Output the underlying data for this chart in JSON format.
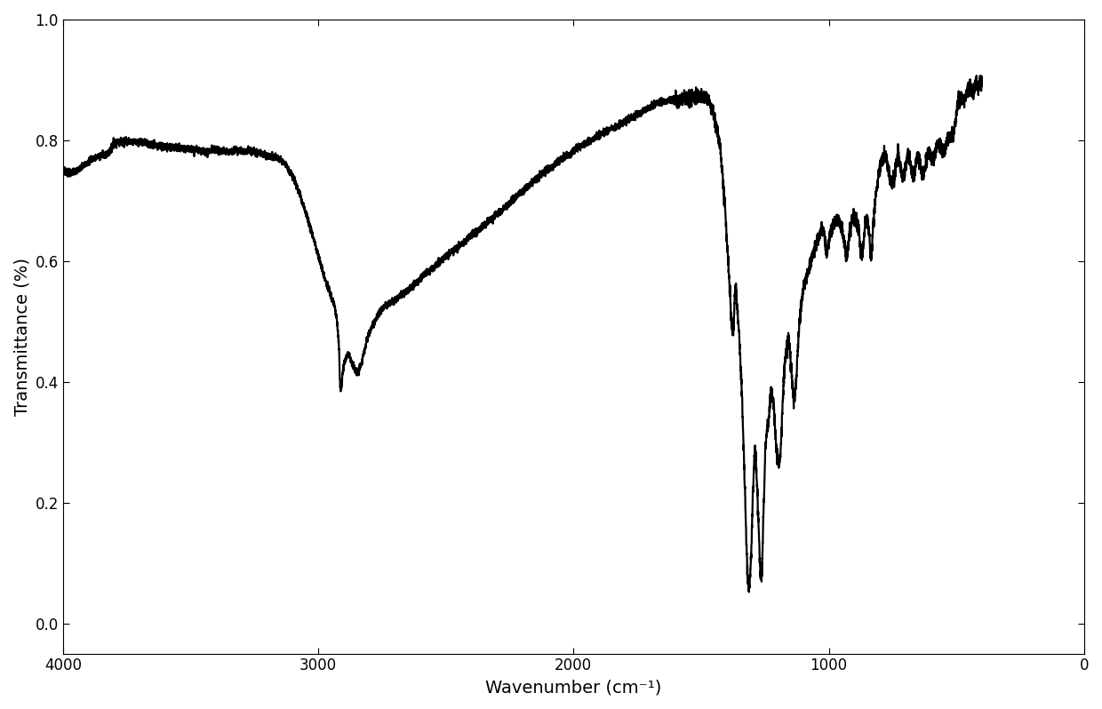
{
  "title": "",
  "xlabel": "Wavenumber (cm⁻¹)",
  "ylabel": "Transmittance (%)",
  "xlim": [
    4000,
    0
  ],
  "ylim": [
    -0.05,
    1.0
  ],
  "yticks": [
    0.0,
    0.2,
    0.4,
    0.6,
    0.8,
    1.0
  ],
  "xticks": [
    4000,
    3000,
    2000,
    1000,
    0
  ],
  "line_color": "#000000",
  "line_width": 1.6,
  "background_color": "#ffffff",
  "key_points": [
    [
      4000,
      0.75
    ],
    [
      3900,
      0.765
    ],
    [
      3850,
      0.775
    ],
    [
      3820,
      0.78
    ],
    [
      3800,
      0.795
    ],
    [
      3780,
      0.798
    ],
    [
      3760,
      0.798
    ],
    [
      3700,
      0.796
    ],
    [
      3650,
      0.793
    ],
    [
      3600,
      0.79
    ],
    [
      3550,
      0.787
    ],
    [
      3500,
      0.785
    ],
    [
      3450,
      0.783
    ],
    [
      3400,
      0.783
    ],
    [
      3350,
      0.782
    ],
    [
      3300,
      0.782
    ],
    [
      3250,
      0.78
    ],
    [
      3200,
      0.775
    ],
    [
      3150,
      0.768
    ],
    [
      3120,
      0.755
    ],
    [
      3100,
      0.74
    ],
    [
      3080,
      0.72
    ],
    [
      3060,
      0.695
    ],
    [
      3040,
      0.668
    ],
    [
      3020,
      0.64
    ],
    [
      3000,
      0.61
    ],
    [
      2980,
      0.58
    ],
    [
      2960,
      0.555
    ],
    [
      2950,
      0.542
    ],
    [
      2940,
      0.53
    ],
    [
      2935,
      0.525
    ],
    [
      2930,
      0.51
    ],
    [
      2925,
      0.495
    ],
    [
      2920,
      0.465
    ],
    [
      2918,
      0.45
    ],
    [
      2916,
      0.42
    ],
    [
      2914,
      0.395
    ],
    [
      2912,
      0.39
    ],
    [
      2910,
      0.392
    ],
    [
      2905,
      0.41
    ],
    [
      2900,
      0.425
    ],
    [
      2895,
      0.435
    ],
    [
      2890,
      0.44
    ],
    [
      2885,
      0.445
    ],
    [
      2880,
      0.445
    ],
    [
      2875,
      0.44
    ],
    [
      2870,
      0.435
    ],
    [
      2865,
      0.428
    ],
    [
      2860,
      0.425
    ],
    [
      2858,
      0.422
    ],
    [
      2856,
      0.42
    ],
    [
      2854,
      0.42
    ],
    [
      2852,
      0.418
    ],
    [
      2850,
      0.416
    ],
    [
      2848,
      0.415
    ],
    [
      2846,
      0.416
    ],
    [
      2844,
      0.418
    ],
    [
      2840,
      0.42
    ],
    [
      2835,
      0.425
    ],
    [
      2830,
      0.432
    ],
    [
      2825,
      0.44
    ],
    [
      2820,
      0.448
    ],
    [
      2815,
      0.458
    ],
    [
      2810,
      0.468
    ],
    [
      2800,
      0.48
    ],
    [
      2790,
      0.49
    ],
    [
      2780,
      0.5
    ],
    [
      2770,
      0.508
    ],
    [
      2760,
      0.515
    ],
    [
      2750,
      0.52
    ],
    [
      2740,
      0.525
    ],
    [
      2720,
      0.53
    ],
    [
      2700,
      0.535
    ],
    [
      2680,
      0.542
    ],
    [
      2660,
      0.548
    ],
    [
      2640,
      0.555
    ],
    [
      2620,
      0.562
    ],
    [
      2600,
      0.57
    ],
    [
      2580,
      0.578
    ],
    [
      2560,
      0.585
    ],
    [
      2540,
      0.592
    ],
    [
      2520,
      0.6
    ],
    [
      2500,
      0.608
    ],
    [
      2480,
      0.615
    ],
    [
      2460,
      0.62
    ],
    [
      2440,
      0.628
    ],
    [
      2420,
      0.635
    ],
    [
      2400,
      0.642
    ],
    [
      2380,
      0.648
    ],
    [
      2360,
      0.655
    ],
    [
      2340,
      0.663
    ],
    [
      2320,
      0.67
    ],
    [
      2300,
      0.678
    ],
    [
      2280,
      0.685
    ],
    [
      2260,
      0.692
    ],
    [
      2240,
      0.7
    ],
    [
      2220,
      0.708
    ],
    [
      2200,
      0.715
    ],
    [
      2180,
      0.722
    ],
    [
      2160,
      0.73
    ],
    [
      2140,
      0.738
    ],
    [
      2120,
      0.745
    ],
    [
      2100,
      0.752
    ],
    [
      2080,
      0.758
    ],
    [
      2060,
      0.764
    ],
    [
      2040,
      0.77
    ],
    [
      2020,
      0.776
    ],
    [
      2000,
      0.782
    ],
    [
      1980,
      0.788
    ],
    [
      1960,
      0.793
    ],
    [
      1940,
      0.798
    ],
    [
      1920,
      0.803
    ],
    [
      1900,
      0.808
    ],
    [
      1880,
      0.813
    ],
    [
      1860,
      0.817
    ],
    [
      1840,
      0.821
    ],
    [
      1820,
      0.825
    ],
    [
      1800,
      0.83
    ],
    [
      1780,
      0.835
    ],
    [
      1760,
      0.84
    ],
    [
      1740,
      0.845
    ],
    [
      1720,
      0.85
    ],
    [
      1700,
      0.855
    ],
    [
      1680,
      0.86
    ],
    [
      1660,
      0.863
    ],
    [
      1640,
      0.865
    ],
    [
      1620,
      0.866
    ],
    [
      1600,
      0.867
    ],
    [
      1580,
      0.868
    ],
    [
      1560,
      0.869
    ],
    [
      1540,
      0.87
    ],
    [
      1520,
      0.871
    ],
    [
      1510,
      0.872
    ],
    [
      1500,
      0.873
    ],
    [
      1490,
      0.872
    ],
    [
      1480,
      0.87
    ],
    [
      1470,
      0.865
    ],
    [
      1460,
      0.855
    ],
    [
      1450,
      0.84
    ],
    [
      1440,
      0.82
    ],
    [
      1430,
      0.8
    ],
    [
      1425,
      0.785
    ],
    [
      1420,
      0.76
    ],
    [
      1415,
      0.735
    ],
    [
      1410,
      0.71
    ],
    [
      1405,
      0.68
    ],
    [
      1400,
      0.645
    ],
    [
      1395,
      0.61
    ],
    [
      1390,
      0.57
    ],
    [
      1385,
      0.53
    ],
    [
      1380,
      0.5
    ],
    [
      1375,
      0.48
    ],
    [
      1370,
      0.52
    ],
    [
      1365,
      0.555
    ],
    [
      1360,
      0.53
    ],
    [
      1355,
      0.5
    ],
    [
      1350,
      0.47
    ],
    [
      1345,
      0.42
    ],
    [
      1340,
      0.38
    ],
    [
      1335,
      0.31
    ],
    [
      1330,
      0.24
    ],
    [
      1325,
      0.17
    ],
    [
      1322,
      0.125
    ],
    [
      1320,
      0.11
    ],
    [
      1318,
      0.085
    ],
    [
      1315,
      0.065
    ],
    [
      1312,
      0.055
    ],
    [
      1310,
      0.06
    ],
    [
      1308,
      0.075
    ],
    [
      1305,
      0.105
    ],
    [
      1302,
      0.14
    ],
    [
      1300,
      0.175
    ],
    [
      1297,
      0.215
    ],
    [
      1294,
      0.248
    ],
    [
      1291,
      0.275
    ],
    [
      1288,
      0.285
    ],
    [
      1285,
      0.265
    ],
    [
      1282,
      0.24
    ],
    [
      1278,
      0.2
    ],
    [
      1275,
      0.165
    ],
    [
      1272,
      0.128
    ],
    [
      1270,
      0.105
    ],
    [
      1268,
      0.085
    ],
    [
      1265,
      0.08
    ],
    [
      1262,
      0.09
    ],
    [
      1260,
      0.11
    ],
    [
      1258,
      0.145
    ],
    [
      1255,
      0.19
    ],
    [
      1252,
      0.23
    ],
    [
      1250,
      0.26
    ],
    [
      1248,
      0.29
    ],
    [
      1246,
      0.3
    ],
    [
      1244,
      0.31
    ],
    [
      1242,
      0.32
    ],
    [
      1240,
      0.325
    ],
    [
      1238,
      0.33
    ],
    [
      1235,
      0.34
    ],
    [
      1232,
      0.355
    ],
    [
      1230,
      0.365
    ],
    [
      1228,
      0.375
    ],
    [
      1226,
      0.38
    ],
    [
      1224,
      0.382
    ],
    [
      1222,
      0.38
    ],
    [
      1220,
      0.375
    ],
    [
      1218,
      0.368
    ],
    [
      1216,
      0.36
    ],
    [
      1214,
      0.35
    ],
    [
      1212,
      0.338
    ],
    [
      1210,
      0.32
    ],
    [
      1208,
      0.305
    ],
    [
      1205,
      0.29
    ],
    [
      1202,
      0.28
    ],
    [
      1200,
      0.275
    ],
    [
      1198,
      0.27
    ],
    [
      1196,
      0.268
    ],
    [
      1194,
      0.27
    ],
    [
      1192,
      0.275
    ],
    [
      1190,
      0.282
    ],
    [
      1188,
      0.292
    ],
    [
      1186,
      0.308
    ],
    [
      1184,
      0.328
    ],
    [
      1182,
      0.35
    ],
    [
      1180,
      0.372
    ],
    [
      1178,
      0.39
    ],
    [
      1176,
      0.405
    ],
    [
      1174,
      0.418
    ],
    [
      1172,
      0.43
    ],
    [
      1170,
      0.44
    ],
    [
      1168,
      0.448
    ],
    [
      1165,
      0.455
    ],
    [
      1162,
      0.462
    ],
    [
      1160,
      0.468
    ],
    [
      1158,
      0.47
    ],
    [
      1156,
      0.468
    ],
    [
      1154,
      0.462
    ],
    [
      1152,
      0.452
    ],
    [
      1150,
      0.44
    ],
    [
      1148,
      0.428
    ],
    [
      1146,
      0.415
    ],
    [
      1144,
      0.402
    ],
    [
      1142,
      0.392
    ],
    [
      1140,
      0.385
    ],
    [
      1138,
      0.38
    ],
    [
      1136,
      0.378
    ],
    [
      1134,
      0.38
    ],
    [
      1132,
      0.385
    ],
    [
      1130,
      0.392
    ],
    [
      1128,
      0.4
    ],
    [
      1126,
      0.412
    ],
    [
      1124,
      0.428
    ],
    [
      1122,
      0.445
    ],
    [
      1120,
      0.46
    ],
    [
      1118,
      0.475
    ],
    [
      1116,
      0.49
    ],
    [
      1114,
      0.502
    ],
    [
      1112,
      0.512
    ],
    [
      1110,
      0.52
    ],
    [
      1108,
      0.528
    ],
    [
      1106,
      0.535
    ],
    [
      1104,
      0.542
    ],
    [
      1102,
      0.548
    ],
    [
      1100,
      0.554
    ],
    [
      1095,
      0.562
    ],
    [
      1090,
      0.57
    ],
    [
      1085,
      0.578
    ],
    [
      1080,
      0.585
    ],
    [
      1075,
      0.592
    ],
    [
      1070,
      0.598
    ],
    [
      1065,
      0.604
    ],
    [
      1060,
      0.61
    ],
    [
      1055,
      0.618
    ],
    [
      1050,
      0.625
    ],
    [
      1045,
      0.632
    ],
    [
      1040,
      0.638
    ],
    [
      1035,
      0.644
    ],
    [
      1030,
      0.65
    ],
    [
      1025,
      0.652
    ],
    [
      1020,
      0.65
    ],
    [
      1018,
      0.645
    ],
    [
      1016,
      0.638
    ],
    [
      1014,
      0.628
    ],
    [
      1012,
      0.62
    ],
    [
      1010,
      0.615
    ],
    [
      1008,
      0.612
    ],
    [
      1006,
      0.615
    ],
    [
      1004,
      0.622
    ],
    [
      1000,
      0.63
    ],
    [
      995,
      0.64
    ],
    [
      990,
      0.65
    ],
    [
      985,
      0.658
    ],
    [
      980,
      0.662
    ],
    [
      975,
      0.665
    ],
    [
      970,
      0.668
    ],
    [
      965,
      0.668
    ],
    [
      960,
      0.665
    ],
    [
      955,
      0.66
    ],
    [
      950,
      0.655
    ],
    [
      945,
      0.645
    ],
    [
      940,
      0.632
    ],
    [
      935,
      0.618
    ],
    [
      932,
      0.61
    ],
    [
      930,
      0.608
    ],
    [
      928,
      0.612
    ],
    [
      925,
      0.62
    ],
    [
      922,
      0.632
    ],
    [
      920,
      0.64
    ],
    [
      918,
      0.648
    ],
    [
      915,
      0.655
    ],
    [
      912,
      0.662
    ],
    [
      910,
      0.668
    ],
    [
      905,
      0.672
    ],
    [
      900,
      0.672
    ],
    [
      895,
      0.67
    ],
    [
      890,
      0.665
    ],
    [
      885,
      0.658
    ],
    [
      882,
      0.65
    ],
    [
      880,
      0.64
    ],
    [
      878,
      0.628
    ],
    [
      875,
      0.618
    ],
    [
      872,
      0.612
    ],
    [
      870,
      0.61
    ],
    [
      868,
      0.614
    ],
    [
      865,
      0.622
    ],
    [
      862,
      0.635
    ],
    [
      860,
      0.648
    ],
    [
      858,
      0.658
    ],
    [
      855,
      0.668
    ],
    [
      852,
      0.672
    ],
    [
      850,
      0.672
    ],
    [
      848,
      0.668
    ],
    [
      845,
      0.66
    ],
    [
      842,
      0.648
    ],
    [
      840,
      0.635
    ],
    [
      838,
      0.62
    ],
    [
      836,
      0.61
    ],
    [
      834,
      0.608
    ],
    [
      832,
      0.615
    ],
    [
      830,
      0.628
    ],
    [
      828,
      0.645
    ],
    [
      825,
      0.665
    ],
    [
      822,
      0.682
    ],
    [
      820,
      0.692
    ],
    [
      818,
      0.7
    ],
    [
      815,
      0.71
    ],
    [
      812,
      0.72
    ],
    [
      810,
      0.728
    ],
    [
      808,
      0.735
    ],
    [
      805,
      0.742
    ],
    [
      802,
      0.748
    ],
    [
      800,
      0.752
    ],
    [
      798,
      0.758
    ],
    [
      795,
      0.762
    ],
    [
      792,
      0.765
    ],
    [
      790,
      0.768
    ],
    [
      788,
      0.77
    ],
    [
      785,
      0.772
    ],
    [
      782,
      0.775
    ],
    [
      780,
      0.776
    ],
    [
      778,
      0.775
    ],
    [
      775,
      0.772
    ],
    [
      772,
      0.768
    ],
    [
      770,
      0.762
    ],
    [
      768,
      0.755
    ],
    [
      765,
      0.748
    ],
    [
      762,
      0.742
    ],
    [
      760,
      0.738
    ],
    [
      758,
      0.735
    ],
    [
      755,
      0.732
    ],
    [
      752,
      0.732
    ],
    [
      750,
      0.732
    ],
    [
      748,
      0.734
    ],
    [
      745,
      0.738
    ],
    [
      742,
      0.742
    ],
    [
      740,
      0.748
    ],
    [
      738,
      0.755
    ],
    [
      735,
      0.762
    ],
    [
      732,
      0.768
    ],
    [
      730,
      0.772
    ],
    [
      728,
      0.772
    ],
    [
      725,
      0.768
    ],
    [
      722,
      0.762
    ],
    [
      720,
      0.756
    ],
    [
      718,
      0.75
    ],
    [
      715,
      0.745
    ],
    [
      712,
      0.742
    ],
    [
      710,
      0.74
    ],
    [
      708,
      0.74
    ],
    [
      705,
      0.742
    ],
    [
      702,
      0.748
    ],
    [
      700,
      0.754
    ],
    [
      698,
      0.76
    ],
    [
      695,
      0.766
    ],
    [
      692,
      0.772
    ],
    [
      690,
      0.775
    ],
    [
      688,
      0.775
    ],
    [
      685,
      0.773
    ],
    [
      682,
      0.768
    ],
    [
      680,
      0.762
    ],
    [
      678,
      0.755
    ],
    [
      675,
      0.748
    ],
    [
      672,
      0.742
    ],
    [
      670,
      0.74
    ],
    [
      668,
      0.74
    ],
    [
      665,
      0.742
    ],
    [
      662,
      0.748
    ],
    [
      660,
      0.755
    ],
    [
      658,
      0.762
    ],
    [
      655,
      0.768
    ],
    [
      652,
      0.772
    ],
    [
      650,
      0.774
    ],
    [
      648,
      0.772
    ],
    [
      645,
      0.768
    ],
    [
      642,
      0.762
    ],
    [
      640,
      0.756
    ],
    [
      638,
      0.752
    ],
    [
      635,
      0.748
    ],
    [
      632,
      0.746
    ],
    [
      630,
      0.745
    ],
    [
      628,
      0.746
    ],
    [
      625,
      0.75
    ],
    [
      622,
      0.756
    ],
    [
      620,
      0.762
    ],
    [
      618,
      0.768
    ],
    [
      615,
      0.774
    ],
    [
      612,
      0.778
    ],
    [
      610,
      0.78
    ],
    [
      608,
      0.78
    ],
    [
      605,
      0.778
    ],
    [
      602,
      0.775
    ],
    [
      600,
      0.772
    ],
    [
      598,
      0.77
    ],
    [
      595,
      0.768
    ],
    [
      592,
      0.768
    ],
    [
      590,
      0.77
    ],
    [
      588,
      0.774
    ],
    [
      585,
      0.778
    ],
    [
      582,
      0.782
    ],
    [
      580,
      0.786
    ],
    [
      578,
      0.79
    ],
    [
      575,
      0.793
    ],
    [
      572,
      0.795
    ],
    [
      570,
      0.796
    ],
    [
      568,
      0.795
    ],
    [
      565,
      0.793
    ],
    [
      562,
      0.79
    ],
    [
      560,
      0.787
    ],
    [
      558,
      0.785
    ],
    [
      555,
      0.783
    ],
    [
      552,
      0.782
    ],
    [
      550,
      0.782
    ],
    [
      548,
      0.783
    ],
    [
      545,
      0.785
    ],
    [
      542,
      0.788
    ],
    [
      540,
      0.792
    ],
    [
      538,
      0.796
    ],
    [
      535,
      0.8
    ],
    [
      532,
      0.803
    ],
    [
      530,
      0.805
    ],
    [
      528,
      0.806
    ],
    [
      525,
      0.806
    ],
    [
      522,
      0.805
    ],
    [
      520,
      0.804
    ],
    [
      518,
      0.804
    ],
    [
      515,
      0.806
    ],
    [
      512,
      0.81
    ],
    [
      510,
      0.814
    ],
    [
      508,
      0.82
    ],
    [
      505,
      0.828
    ],
    [
      502,
      0.838
    ],
    [
      500,
      0.845
    ],
    [
      498,
      0.852
    ],
    [
      495,
      0.86
    ],
    [
      492,
      0.866
    ],
    [
      490,
      0.87
    ],
    [
      488,
      0.872
    ],
    [
      485,
      0.873
    ],
    [
      482,
      0.872
    ],
    [
      480,
      0.87
    ],
    [
      478,
      0.868
    ],
    [
      475,
      0.866
    ],
    [
      472,
      0.865
    ],
    [
      470,
      0.865
    ],
    [
      468,
      0.866
    ],
    [
      465,
      0.868
    ],
    [
      462,
      0.872
    ],
    [
      460,
      0.876
    ],
    [
      458,
      0.88
    ],
    [
      455,
      0.883
    ],
    [
      452,
      0.885
    ],
    [
      450,
      0.886
    ],
    [
      448,
      0.886
    ],
    [
      445,
      0.885
    ],
    [
      442,
      0.883
    ],
    [
      440,
      0.881
    ],
    [
      438,
      0.88
    ],
    [
      435,
      0.88
    ],
    [
      432,
      0.882
    ],
    [
      430,
      0.885
    ],
    [
      428,
      0.888
    ],
    [
      425,
      0.89
    ],
    [
      422,
      0.892
    ],
    [
      420,
      0.893
    ],
    [
      418,
      0.893
    ],
    [
      415,
      0.892
    ],
    [
      412,
      0.891
    ],
    [
      410,
      0.891
    ],
    [
      408,
      0.893
    ],
    [
      405,
      0.895
    ],
    [
      402,
      0.897
    ],
    [
      400,
      0.9
    ]
  ]
}
